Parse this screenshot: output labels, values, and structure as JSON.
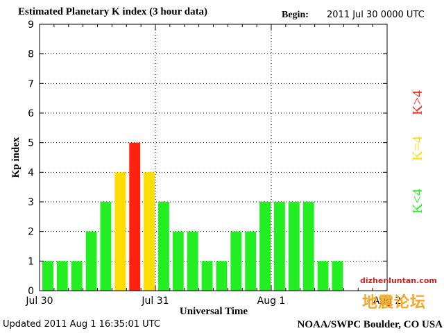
{
  "header": {
    "title": "Estimated Planetary K index (3 hour data)",
    "begin_label": "Begin:",
    "begin_value": "2011 Jul 30 0000 UTC"
  },
  "footer": {
    "updated": "Updated 2011 Aug  1 16:35:01 UTC",
    "credit": "NOAA/SWPC Boulder, CO USA"
  },
  "watermark": {
    "url": "dizhenluntan.com",
    "text": "地震论坛"
  },
  "colors": {
    "low": "#22ee22",
    "moderate": "#ffdd00",
    "high": "#ff2211"
  },
  "chart_data": {
    "type": "bar",
    "xlabel": "Universal Time",
    "ylabel": "Kp index",
    "ylim": [
      0,
      9
    ],
    "yticks": [
      "0",
      "1",
      "2",
      "3",
      "4",
      "5",
      "6",
      "7",
      "8",
      "9"
    ],
    "x_tick_labels": [
      "Jul 30",
      "Jul 31",
      "Aug 1",
      "Aug 2"
    ],
    "grid": true,
    "legend": [
      {
        "label": "K<4",
        "color": "#22ee22"
      },
      {
        "label": "K=4",
        "color": "#ffdd00"
      },
      {
        "label": "K>4",
        "color": "#ff2211"
      }
    ],
    "values": [
      1,
      1,
      1,
      2,
      3,
      4,
      5,
      4,
      3,
      2,
      2,
      1,
      1,
      2,
      2,
      3,
      3,
      3,
      3,
      1,
      1
    ]
  }
}
